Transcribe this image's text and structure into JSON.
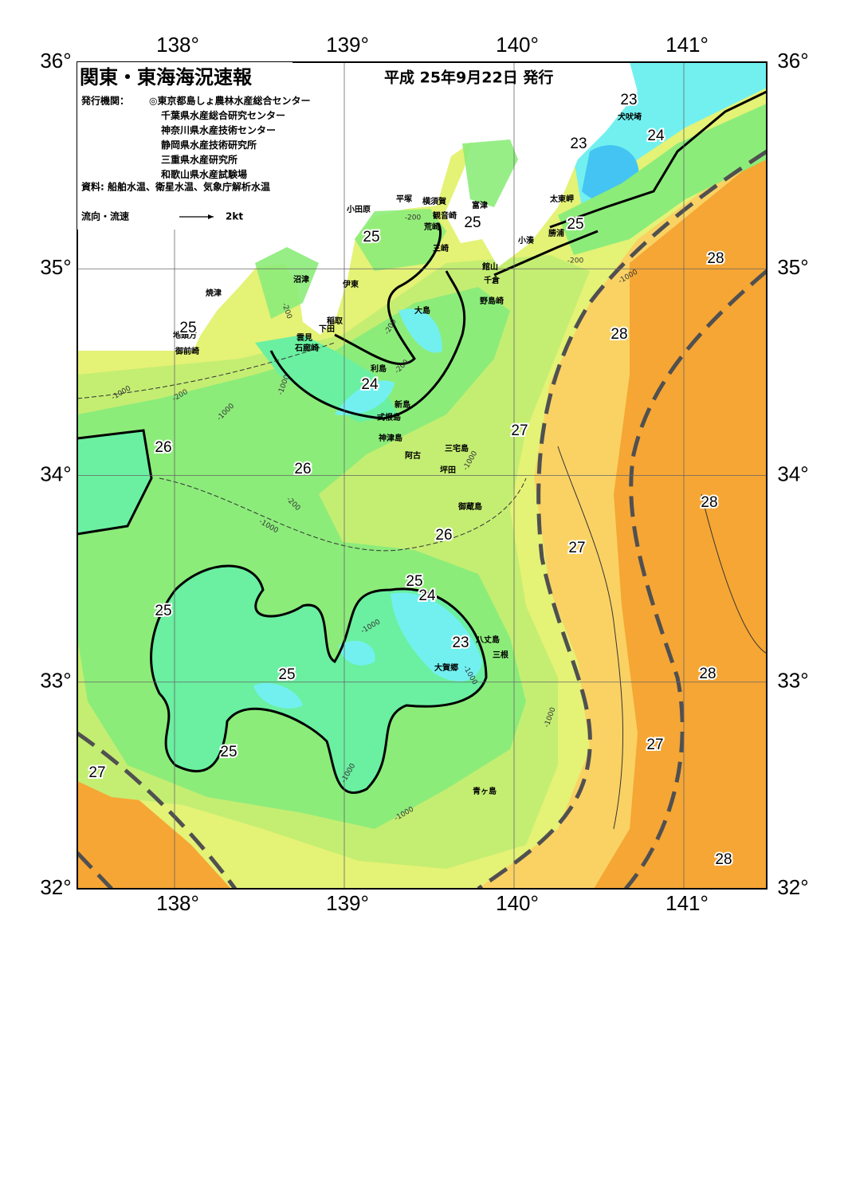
{
  "header": {
    "title": "関東・東海海況速報",
    "date": "平成 25年9月22日 発行",
    "issuer_label": "発行機関：",
    "issuers": [
      "◎東京都島しょ農林水産総合センター",
      "千葉県水産総合研究センター",
      "神奈川県水産技術センター",
      "静岡県水産技術研究所",
      "三重県水産研究所",
      "和歌山県水産試験場"
    ],
    "sources": "資料: 船舶水温、衛星水温、気象庁解析水温"
  },
  "legend": {
    "label": "流向・流速",
    "scale": "2kt"
  },
  "map": {
    "longitude_ticks": [
      {
        "value": 138,
        "label": "138°"
      },
      {
        "value": 139,
        "label": "139°"
      },
      {
        "value": 140,
        "label": "140°"
      },
      {
        "value": 141,
        "label": "141°"
      }
    ],
    "latitude_ticks": [
      {
        "value": 36,
        "label": "36°"
      },
      {
        "value": 35,
        "label": "35°"
      },
      {
        "value": 34,
        "label": "34°"
      },
      {
        "value": 33,
        "label": "33°"
      },
      {
        "value": 32,
        "label": "32°"
      }
    ],
    "place_names": [
      "犬吠埼",
      "太東岬",
      "勝浦",
      "小湊",
      "富津",
      "横須賀",
      "平塚",
      "観音崎",
      "荒崎",
      "小田原",
      "三崎",
      "館山",
      "千倉",
      "野島崎",
      "沼津",
      "伊東",
      "焼津",
      "大島",
      "稲取",
      "下田",
      "雲見",
      "石廊崎",
      "地頭方",
      "御前崎",
      "利島",
      "新島",
      "式根島",
      "神津島",
      "三宅島",
      "阿古",
      "坪田",
      "御蔵島",
      "八丈島",
      "三根",
      "大賀郷",
      "青ヶ島"
    ],
    "temperature_labels": [
      23,
      24,
      23,
      25,
      25,
      25,
      28,
      25,
      28,
      24,
      27,
      26,
      26,
      28,
      26,
      27,
      25,
      24,
      25,
      23,
      25,
      28,
      27,
      25,
      27,
      28
    ],
    "depth_labels": [
      -200,
      -200,
      -200,
      -200,
      -1000,
      -200,
      -1000,
      -1000,
      -1000,
      -200,
      -1000,
      -1000,
      -1000,
      -1000,
      -1000,
      -1000,
      -200,
      -1000
    ]
  }
}
